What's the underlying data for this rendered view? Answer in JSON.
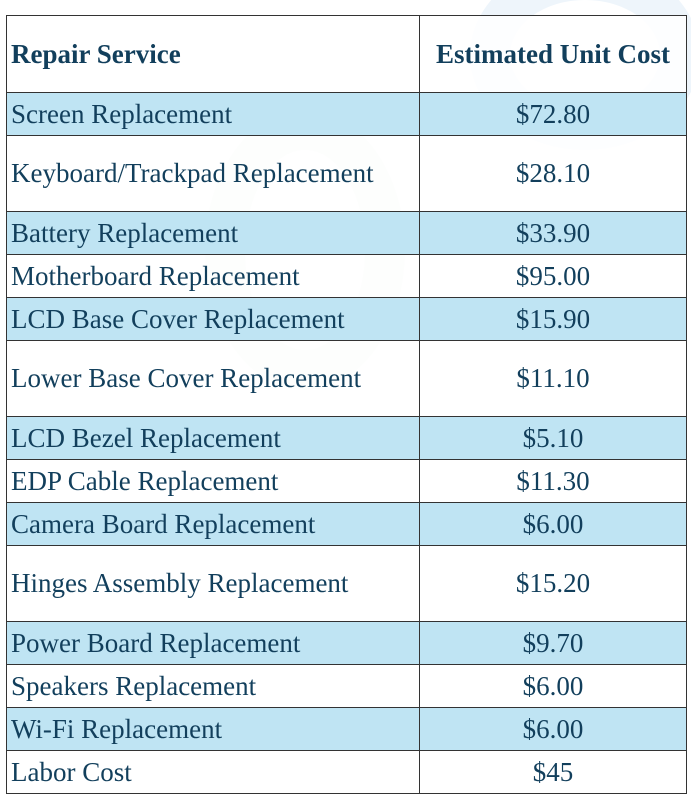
{
  "table": {
    "headers": [
      "Repair Service",
      "Estimated Unit Cost"
    ],
    "header_color": "#123f5c",
    "band_color": "#bfe4f3",
    "rows": [
      {
        "service": "Screen Replacement",
        "cost": "$72.80"
      },
      {
        "service": "Keyboard/Trackpad Replacement",
        "cost": "$28.10"
      },
      {
        "service": "Battery Replacement",
        "cost": "$33.90"
      },
      {
        "service": "Motherboard Replacement",
        "cost": "$95.00"
      },
      {
        "service": "LCD Base Cover Replacement",
        "cost": "$15.90"
      },
      {
        "service": "Lower Base Cover Replacement",
        "cost": "$11.10"
      },
      {
        "service": "LCD Bezel Replacement",
        "cost": "$5.10"
      },
      {
        "service": "EDP Cable Replacement",
        "cost": "$11.30"
      },
      {
        "service": "Camera Board Replacement",
        "cost": "$6.00"
      },
      {
        "service": "Hinges Assembly Replacement",
        "cost": "$15.20"
      },
      {
        "service": "Power Board Replacement",
        "cost": "$9.70"
      },
      {
        "service": "Speakers Replacement",
        "cost": "$6.00"
      },
      {
        "service": "Wi-Fi Replacement",
        "cost": "$6.00"
      },
      {
        "service": "Labor Cost",
        "cost": "$45"
      }
    ]
  }
}
